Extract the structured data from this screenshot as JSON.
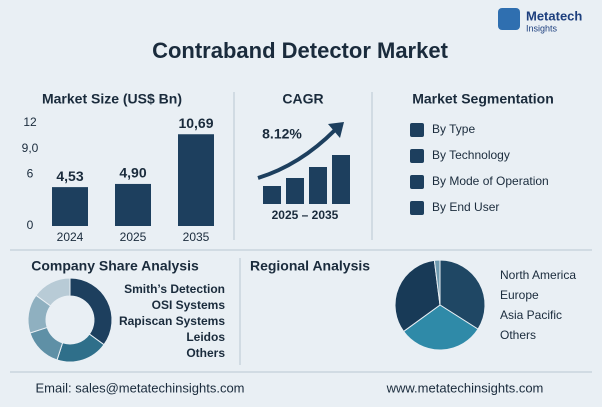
{
  "header": {
    "title": "Contraband Detector Market",
    "logo": {
      "name": "Metatech",
      "tagline": "Insights"
    }
  },
  "sections": {
    "market_size": "Market Size (US$ Bn)",
    "cagr": "CAGR",
    "segmentation": "Market Segmentation",
    "company_share": "Company Share Analysis",
    "regional": "Regional Analysis"
  },
  "cagr": {
    "value": "8.12%",
    "period": "2025 – 2035"
  },
  "segmentation": [
    "By Type",
    "By Technology",
    "By Mode of Operation",
    "By End User"
  ],
  "footer": {
    "email": "Email: sales@metatechinsights.com",
    "website": "www.metatechinsights.com"
  },
  "chart_data": [
    {
      "type": "bar",
      "categories": [
        "2024",
        "2025",
        "2035"
      ],
      "values": [
        4.53,
        4.9,
        10.69
      ],
      "value_labels": [
        "4,53",
        "4,90",
        "10,69"
      ],
      "color": "#1d3f5e",
      "ylim": [
        0,
        12
      ],
      "yticks": [
        0,
        6,
        {
          "value": 9,
          "label": "9,0"
        },
        12
      ]
    },
    {
      "type": "donut",
      "categories": [
        "Smith’s Detection",
        "OSI Systems",
        "Rapiscan Systems",
        "Leidos",
        "Others"
      ],
      "values": [
        35,
        20,
        15,
        15,
        15
      ],
      "colors": [
        "#1d3f5e",
        "#2f6f8a",
        "#5f90a6",
        "#8fb0c0",
        "#b8cbd6"
      ]
    },
    {
      "type": "pie",
      "categories": [
        "North America",
        "Europe",
        "Asia Pacific",
        "Others"
      ],
      "values": [
        34,
        31,
        33,
        2
      ],
      "colors": [
        "#1f4764",
        "#2f8aa8",
        "#183a57",
        "#6f9bb0"
      ]
    }
  ]
}
